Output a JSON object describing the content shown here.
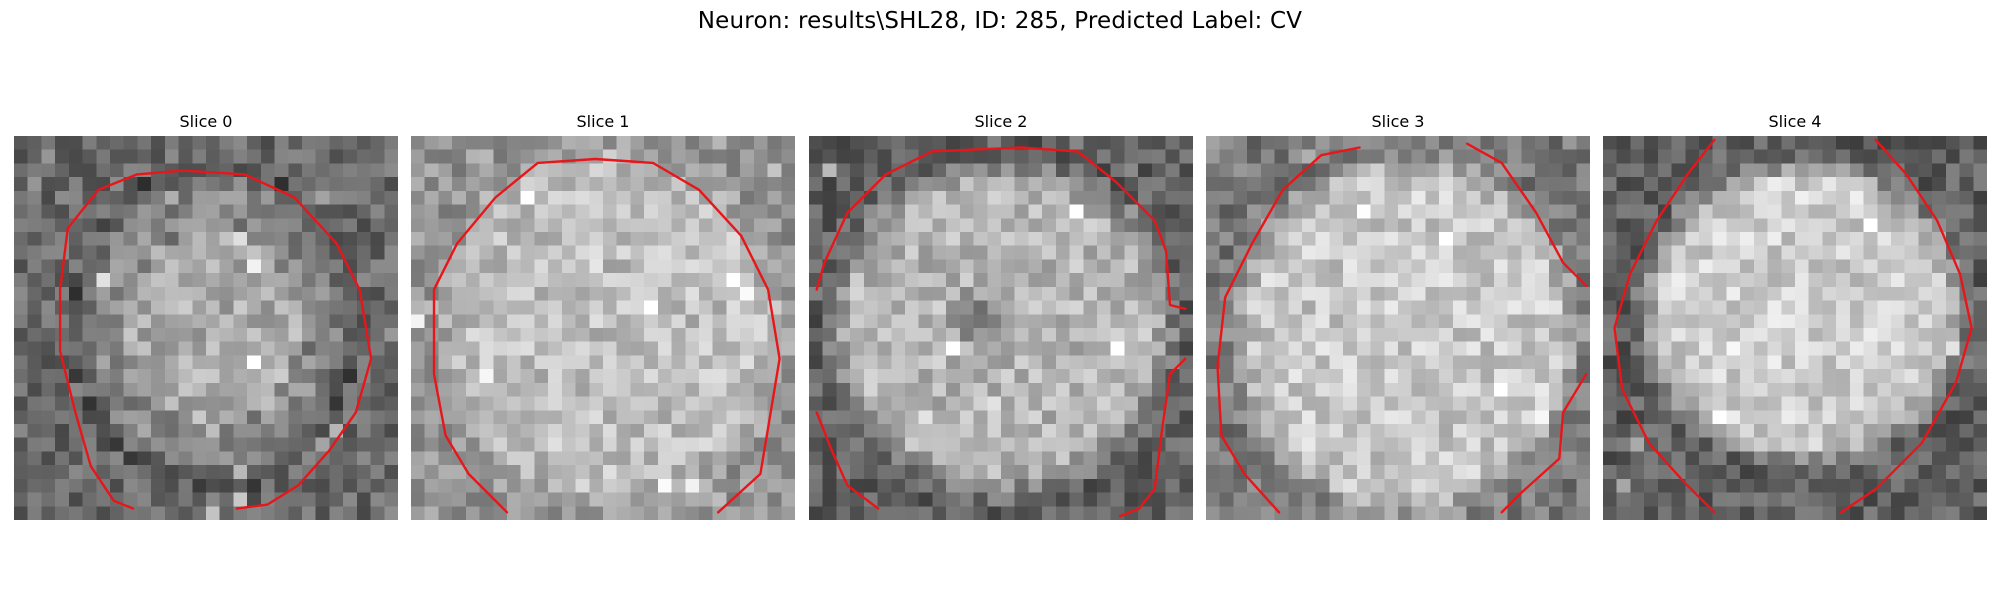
{
  "figure": {
    "suptitle": "Neuron: results\\SHL28, ID: 285, Predicted Label: CV",
    "contour_color": "#e8161a",
    "colormap": "gray"
  },
  "slices": [
    {
      "title": "Slice 0"
    },
    {
      "title": "Slice 1"
    },
    {
      "title": "Slice 2"
    },
    {
      "title": "Slice 3"
    },
    {
      "title": "Slice 4"
    }
  ]
}
